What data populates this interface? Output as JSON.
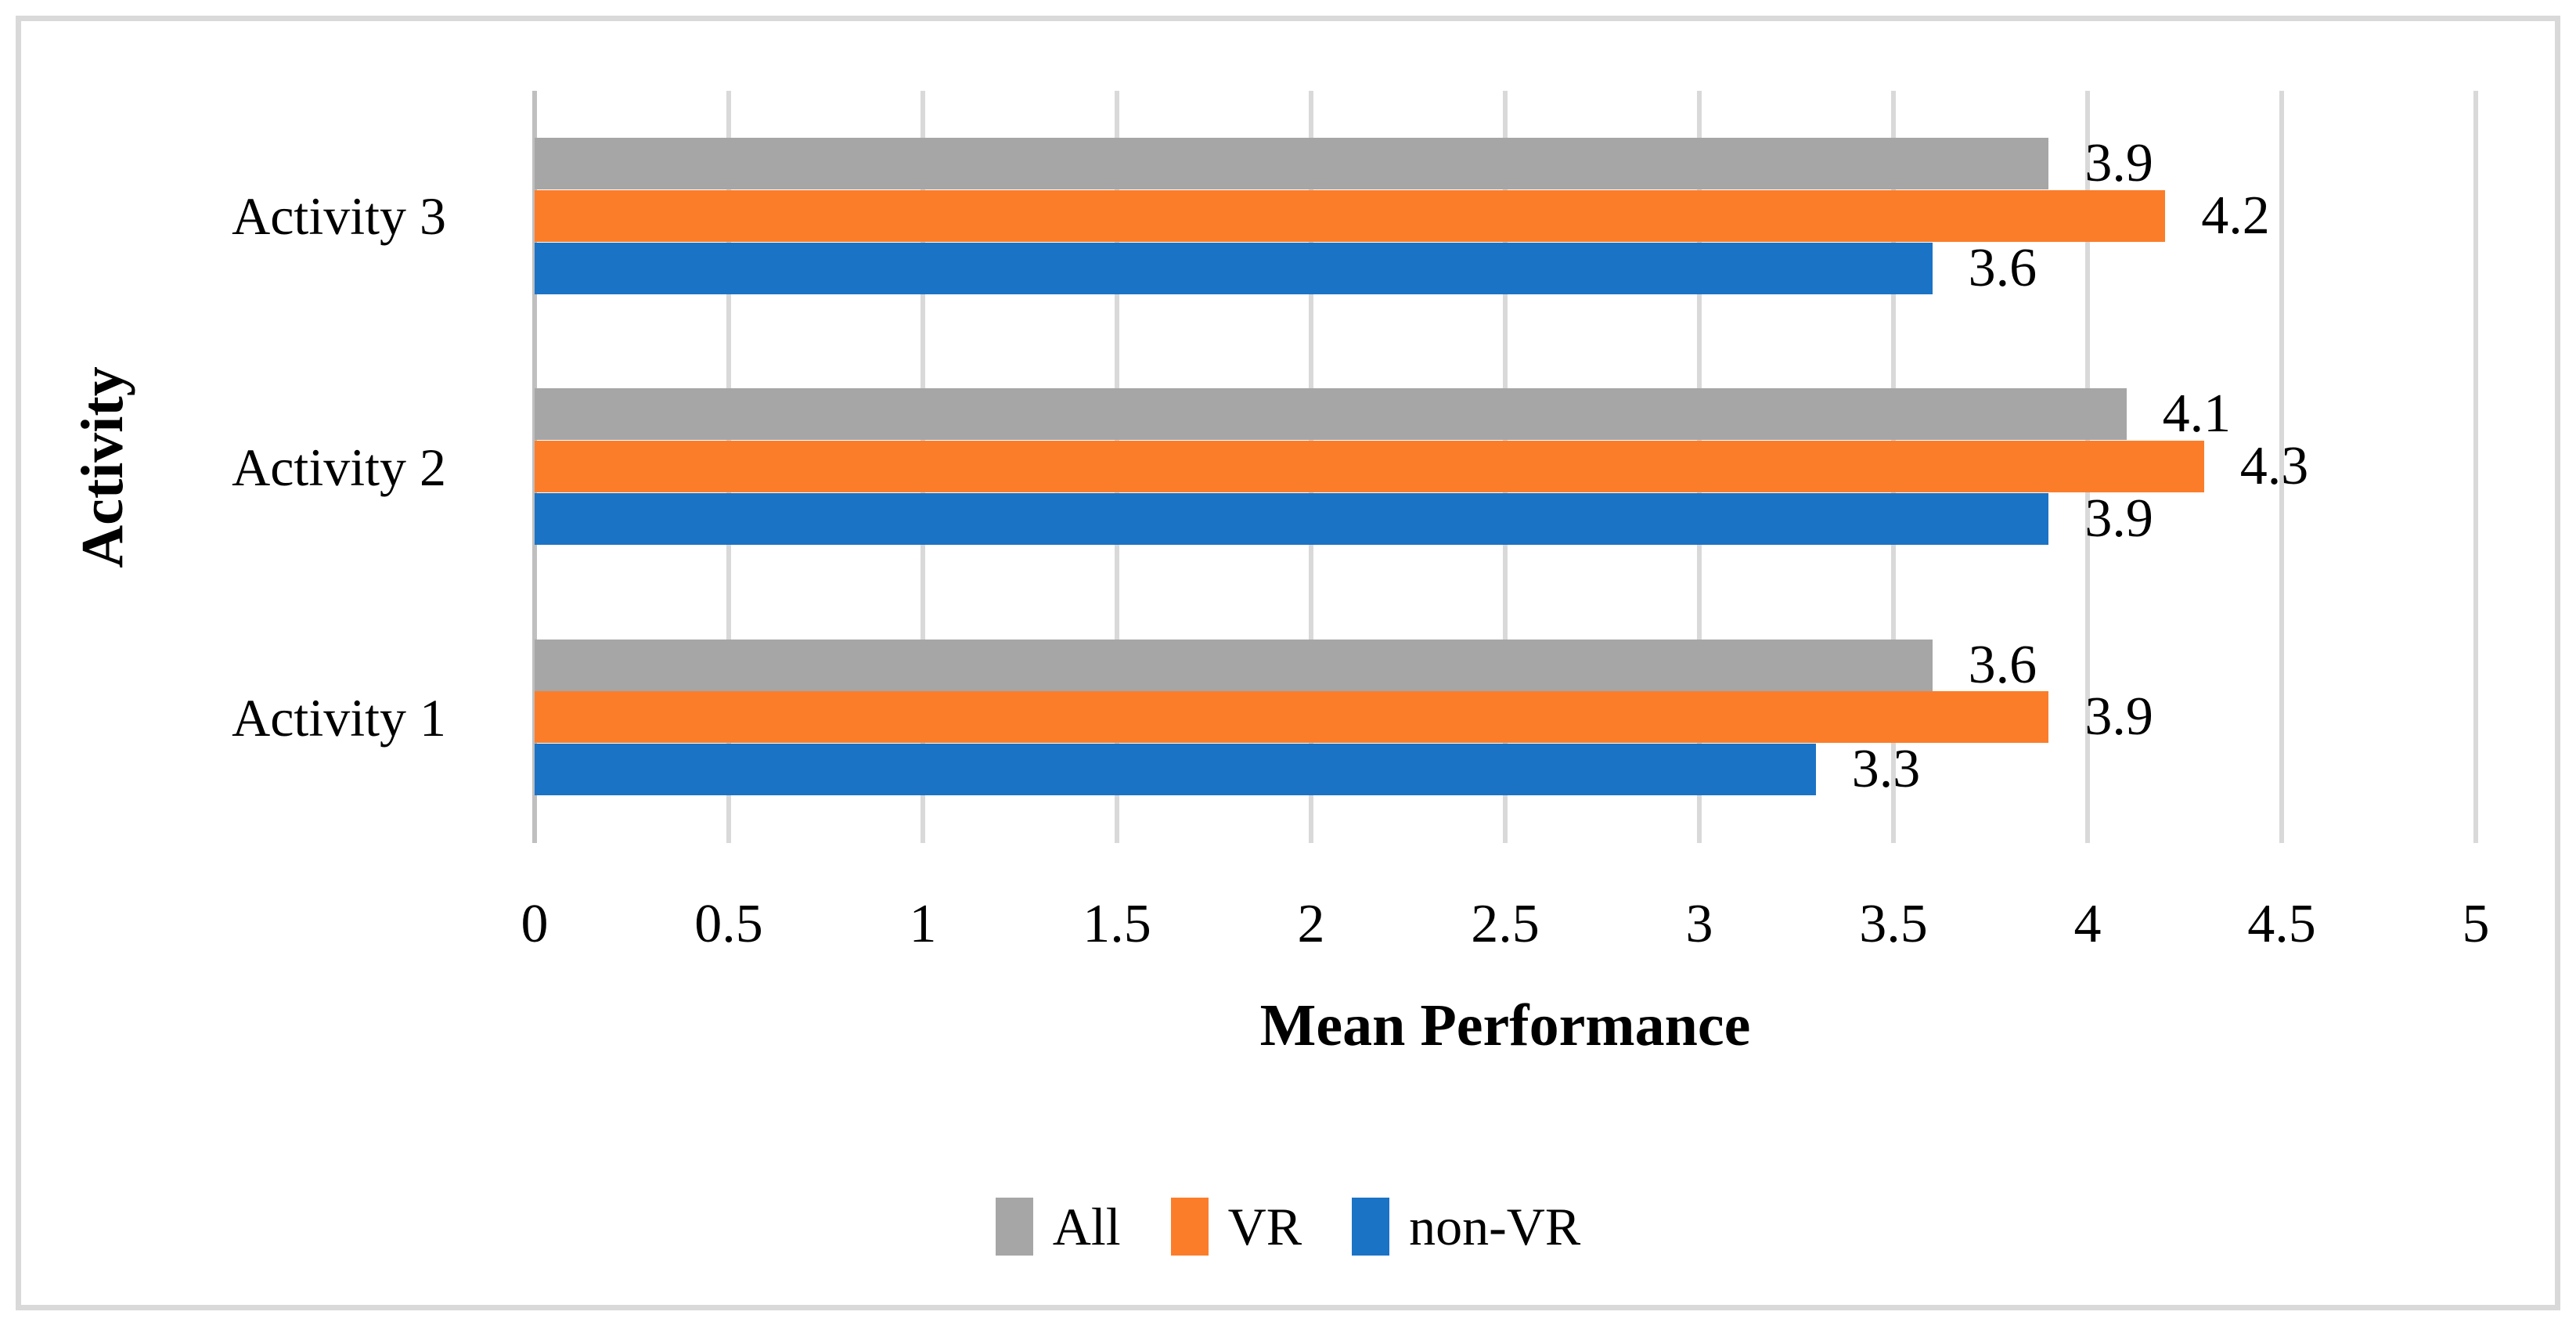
{
  "chart_data": {
    "type": "bar",
    "orientation": "horizontal",
    "title": "",
    "xlabel": "Mean Performance",
    "ylabel": "Activity",
    "xlim": [
      0,
      5
    ],
    "xticks": [
      0,
      0.5,
      1,
      1.5,
      2,
      2.5,
      3,
      3.5,
      4,
      4.5,
      5
    ],
    "xtick_labels": [
      "0",
      "0.5",
      "1",
      "1.5",
      "2",
      "2.5",
      "3",
      "3.5",
      "4",
      "4.5",
      "5"
    ],
    "categories_top_to_bottom": [
      "Activity 3",
      "Activity 2",
      "Activity 1"
    ],
    "series_top_to_bottom_per_group": [
      {
        "name": "All",
        "color": "#A6A6A6",
        "values": [
          3.9,
          4.1,
          3.6
        ]
      },
      {
        "name": "VR",
        "color": "#FB7D2A",
        "values": [
          4.2,
          4.3,
          3.9
        ]
      },
      {
        "name": "non-VR",
        "color": "#1B73C6",
        "values": [
          3.6,
          3.9,
          3.3
        ]
      }
    ],
    "data_labels": true,
    "data_label_format": "one_decimal",
    "grid": "vertical",
    "legend_position": "bottom",
    "legend_entries": [
      "All",
      "VR",
      "non-VR"
    ]
  },
  "style_colors": {
    "gridline": "#D9D9D9",
    "axis_line": "#BFBFBF",
    "frame_border": "#D9D9D9",
    "text": "#000000",
    "background": "#FFFFFF"
  }
}
